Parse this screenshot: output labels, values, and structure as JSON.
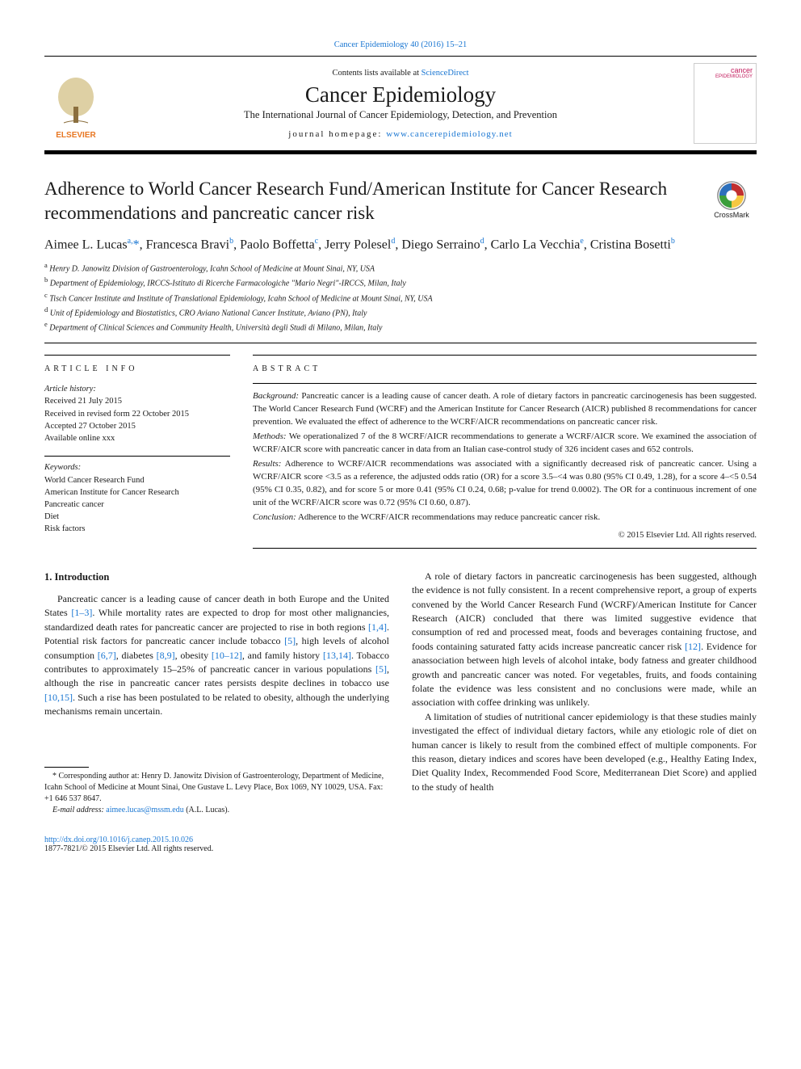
{
  "top_link": {
    "prefix": "Cancer Epidemiology 40 (2016) 15–21"
  },
  "header": {
    "elsevier_name": "ELSEVIER",
    "contents_prefix": "Contents lists available at ",
    "contents_link": "ScienceDirect",
    "journal_name": "Cancer Epidemiology",
    "journal_sub": "The International Journal of Cancer Epidemiology, Detection, and Prevention",
    "home_prefix": "journal homepage: ",
    "home_link": "www.cancerepidemiology.net",
    "cover_line1": "cancer",
    "cover_line2": "EPIDEMIOLOGY"
  },
  "crossmark_label": "CrossMark",
  "title": "Adherence to World Cancer Research Fund/American Institute for Cancer Research recommendations and pancreatic cancer risk",
  "authors_html": "Aimee L. Lucas<sup>a,</sup><a>*</a>, Francesca Bravi<sup>b</sup>, Paolo Boffetta<sup>c</sup>, Jerry Polesel<sup>d</sup>, Diego Serraino<sup>d</sup>, Carlo La Vecchia<sup>e</sup>, Cristina Bosetti<sup>b</sup>",
  "affiliations": [
    {
      "sup": "a",
      "text": "Henry D. Janowitz Division of Gastroenterology, Icahn School of Medicine at Mount Sinai, NY, USA"
    },
    {
      "sup": "b",
      "text": "Department of Epidemiology, IRCCS-Istituto di Ricerche Farmacologiche \"Mario Negri\"-IRCCS, Milan, Italy"
    },
    {
      "sup": "c",
      "text": "Tisch Cancer Institute and Institute of Translational Epidemiology, Icahn School of Medicine at Mount Sinai, NY, USA"
    },
    {
      "sup": "d",
      "text": "Unit of Epidemiology and Biostatistics, CRO Aviano National Cancer Institute, Aviano (PN), Italy"
    },
    {
      "sup": "e",
      "text": "Department of Clinical Sciences and Community Health, Università degli Studi di Milano, Milan, Italy"
    }
  ],
  "info": {
    "heading": "ARTICLE INFO",
    "history_label": "Article history:",
    "history": [
      "Received 21 July 2015",
      "Received in revised form 22 October 2015",
      "Accepted 27 October 2015",
      "Available online xxx"
    ],
    "keywords_label": "Keywords:",
    "keywords": [
      "World Cancer Research Fund",
      "American Institute for Cancer Research",
      "Pancreatic cancer",
      "Diet",
      "Risk factors"
    ]
  },
  "abstract": {
    "heading": "ABSTRACT",
    "background_label": "Background:",
    "background": "Pancreatic cancer is a leading cause of cancer death. A role of dietary factors in pancreatic carcinogenesis has been suggested. The World Cancer Research Fund (WCRF) and the American Institute for Cancer Research (AICR) published 8 recommendations for cancer prevention. We evaluated the effect of adherence to the WCRF/AICR recommendations on pancreatic cancer risk.",
    "methods_label": "Methods:",
    "methods": "We operationalized 7 of the 8 WCRF/AICR recommendations to generate a WCRF/AICR score. We examined the association of WCRF/AICR score with pancreatic cancer in data from an Italian case-control study of 326 incident cases and 652 controls.",
    "results_label": "Results:",
    "results": "Adherence to WCRF/AICR recommendations was associated with a significantly decreased risk of pancreatic cancer. Using a WCRF/AICR score <3.5 as a reference, the adjusted odds ratio (OR) for a score 3.5–<4 was 0.80 (95% CI 0.49, 1.28), for a score 4–<5 0.54 (95% CI 0.35, 0.82), and for score 5 or more 0.41 (95% CI 0.24, 0.68; p-value for trend 0.0002). The OR for a continuous increment of one unit of the WCRF/AICR score was 0.72 (95% CI 0.60, 0.87).",
    "conclusion_label": "Conclusion:",
    "conclusion": "Adherence to the WCRF/AICR recommendations may reduce pancreatic cancer risk.",
    "copyright": "© 2015 Elsevier Ltd. All rights reserved."
  },
  "body": {
    "intro_heading": "1. Introduction",
    "col1_p1": "Pancreatic cancer is a leading cause of cancer death in both Europe and the United States [1–3]. While mortality rates are expected to drop for most other malignancies, standardized death rates for pancreatic cancer are projected to rise in both regions [1,4]. Potential risk factors for pancreatic cancer include tobacco [5], high levels of alcohol consumption [6,7], diabetes [8,9], obesity [10–12], and family history [13,14]. Tobacco contributes to approximately 15–25% of pancreatic cancer in various populations [5], although the rise in pancreatic cancer rates persists despite declines in tobacco use [10,15]. Such a rise has been postulated to be related to obesity, although the underlying mechanisms remain uncertain.",
    "col2_p1": "A role of dietary factors in pancreatic carcinogenesis has been suggested, although the evidence is not fully consistent. In a recent comprehensive report, a group of experts convened by the World Cancer Research Fund (WCRF)/American Institute for Cancer Research (AICR) concluded that there was limited suggestive evidence that consumption of red and processed meat, foods and beverages containing fructose, and foods containing saturated fatty acids increase pancreatic cancer risk [12]. Evidence for anassociation between high levels of alcohol intake, body fatness and greater childhood growth and pancreatic cancer was noted. For vegetables, fruits, and foods containing folate the evidence was less consistent and no conclusions were made, while an association with coffee drinking was unlikely.",
    "col2_p2": "A limitation of studies of nutritional cancer epidemiology is that these studies mainly investigated the effect of individual dietary factors, while any etiologic role of diet on human cancer is likely to result from the combined effect of multiple components. For this reason, dietary indices and scores have been developed (e.g., Healthy Eating Index, Diet Quality Index, Recommended Food Score, Mediterranean Diet Score) and applied to the study of health"
  },
  "footnotes": {
    "corresponding": "* Corresponding author at: Henry D. Janowitz Division of Gastroenterology, Department of Medicine, Icahn School of Medicine at Mount Sinai, One Gustave L. Levy Place, Box 1069, NY 10029, USA. Fax: +1 646 537 8647.",
    "email_label": "E-mail address:",
    "email": "aimee.lucas@mssm.edu",
    "email_suffix": " (A.L. Lucas)."
  },
  "doi": {
    "link": "http://dx.doi.org/10.1016/j.canep.2015.10.026",
    "issn": "1877-7821/© 2015 Elsevier Ltd. All rights reserved."
  },
  "colors": {
    "link": "#1976d2",
    "elsevier_orange": "#e87722",
    "crossmark_red": "#c12f2f",
    "crossmark_yellow": "#f5c842",
    "crossmark_green": "#3b9e3b",
    "crossmark_blue": "#2c6fbb"
  }
}
